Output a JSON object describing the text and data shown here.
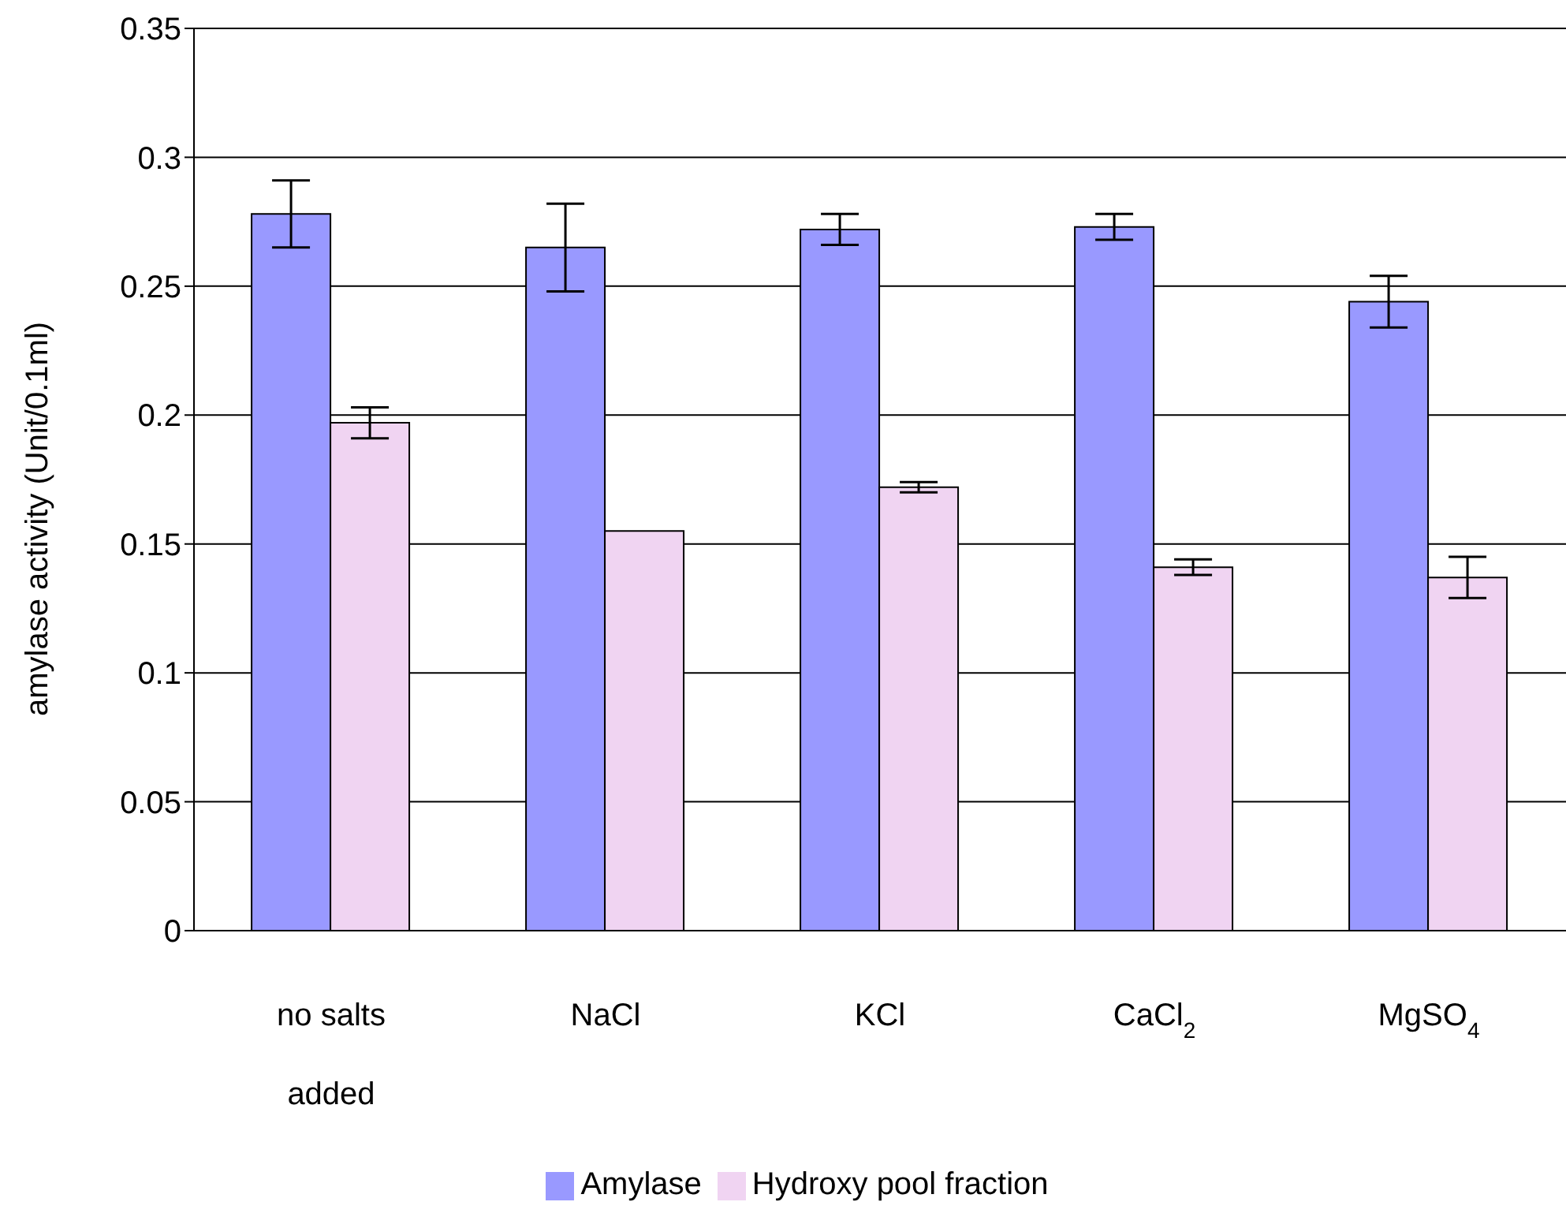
{
  "chart_data": {
    "type": "bar",
    "ylabel": "amylase activity (Unit/0.1ml)",
    "categories": [
      "no salts added",
      "NaCl",
      "KCl",
      "CaCl$_{2}$",
      "MgSO$_{4}$"
    ],
    "series": [
      {
        "name": "Amylase",
        "color": "#9999ff",
        "values": [
          0.278,
          0.265,
          0.272,
          0.273,
          0.244
        ],
        "errors": [
          0.013,
          0.017,
          0.006,
          0.005,
          0.01
        ]
      },
      {
        "name": "Hydroxy pool fraction",
        "color": "#f0d4f2",
        "values": [
          0.197,
          0.155,
          0.172,
          0.141,
          0.137
        ],
        "errors": [
          0.006,
          null,
          0.002,
          0.003,
          0.008
        ]
      }
    ],
    "ylim": [
      0,
      0.35
    ],
    "yticks": [
      0,
      0.05,
      0.1,
      0.15,
      0.2,
      0.25,
      0.3,
      0.35
    ],
    "grid": "y",
    "legend": "bottom"
  }
}
